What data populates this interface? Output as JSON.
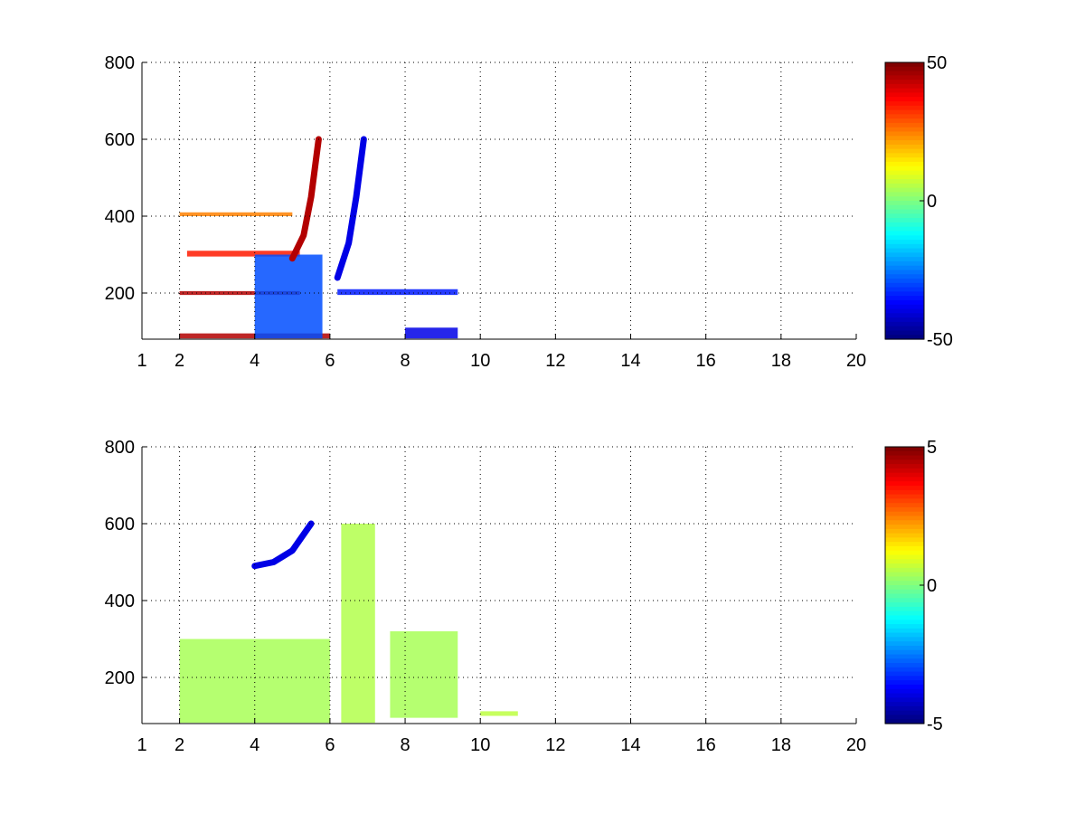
{
  "colors": {
    "colormap": "jet",
    "background": "#ffffff",
    "axes": "#000000",
    "grid": "#000000"
  },
  "chart_data": [
    {
      "type": "heatmap",
      "title": "",
      "xlabel": "",
      "ylabel": "",
      "xlim": [
        1,
        20
      ],
      "ylim": [
        80,
        800
      ],
      "x_ticks": [
        1,
        2,
        4,
        6,
        8,
        10,
        12,
        14,
        16,
        18,
        20
      ],
      "x_tick_labels": [
        "1",
        "2",
        "4",
        "6",
        "8",
        "10",
        "12",
        "14",
        "16",
        "18",
        "20"
      ],
      "y_ticks": [
        200,
        400,
        600,
        800
      ],
      "y_tick_labels": [
        "200",
        "400",
        "600",
        "800"
      ],
      "grid": "dotted",
      "colorbar": {
        "min": -50,
        "max": 50,
        "tick_labels": [
          "50",
          "0",
          "-50"
        ]
      },
      "features": [
        {
          "kind": "band",
          "x": [
            2,
            5.2
          ],
          "y": [
            195,
            205
          ],
          "value": 45
        },
        {
          "kind": "band",
          "x": [
            2,
            6
          ],
          "y": [
            82,
            95
          ],
          "value": 45
        },
        {
          "kind": "band",
          "x": [
            2.2,
            5.2
          ],
          "y": [
            295,
            310
          ],
          "value": 35
        },
        {
          "kind": "band",
          "x": [
            2,
            5
          ],
          "y": [
            400,
            410
          ],
          "value": 25
        },
        {
          "kind": "block",
          "x": [
            4,
            5.8
          ],
          "y": [
            82,
            300
          ],
          "value": -30
        },
        {
          "kind": "curve",
          "x": [
            5.0,
            5.3,
            5.5,
            5.7
          ],
          "y": [
            290,
            350,
            450,
            600
          ],
          "value": 45
        },
        {
          "kind": "curve",
          "x": [
            6.2,
            6.5,
            6.7,
            6.9
          ],
          "y": [
            240,
            330,
            450,
            600
          ],
          "value": -40
        },
        {
          "kind": "band",
          "x": [
            6.2,
            9.4
          ],
          "y": [
            195,
            210
          ],
          "value": -35
        },
        {
          "kind": "block",
          "x": [
            8,
            9.4
          ],
          "y": [
            82,
            110
          ],
          "value": -40
        }
      ]
    },
    {
      "type": "heatmap",
      "title": "",
      "xlabel": "",
      "ylabel": "",
      "xlim": [
        1,
        20
      ],
      "ylim": [
        80,
        800
      ],
      "x_ticks": [
        1,
        2,
        4,
        6,
        8,
        10,
        12,
        14,
        16,
        18,
        20
      ],
      "x_tick_labels": [
        "1",
        "2",
        "4",
        "6",
        "8",
        "10",
        "12",
        "14",
        "16",
        "18",
        "20"
      ],
      "y_ticks": [
        200,
        400,
        600,
        800
      ],
      "y_tick_labels": [
        "200",
        "400",
        "600",
        "800"
      ],
      "grid": "dotted",
      "colorbar": {
        "min": -5,
        "max": 5,
        "tick_labels": [
          "5",
          "0",
          "-5"
        ]
      },
      "features": [
        {
          "kind": "block",
          "x": [
            2,
            6
          ],
          "y": [
            82,
            300
          ],
          "value": 0.4
        },
        {
          "kind": "curve",
          "x": [
            4.0,
            4.5,
            5.0,
            5.5
          ],
          "y": [
            490,
            500,
            530,
            600
          ],
          "value": -4
        },
        {
          "kind": "block",
          "x": [
            6.3,
            7.2
          ],
          "y": [
            82,
            600
          ],
          "value": 0.5
        },
        {
          "kind": "block",
          "x": [
            7.6,
            9.4
          ],
          "y": [
            95,
            320
          ],
          "value": 0.4
        },
        {
          "kind": "band",
          "x": [
            10,
            11
          ],
          "y": [
            100,
            112
          ],
          "value": 0.6
        }
      ]
    }
  ]
}
